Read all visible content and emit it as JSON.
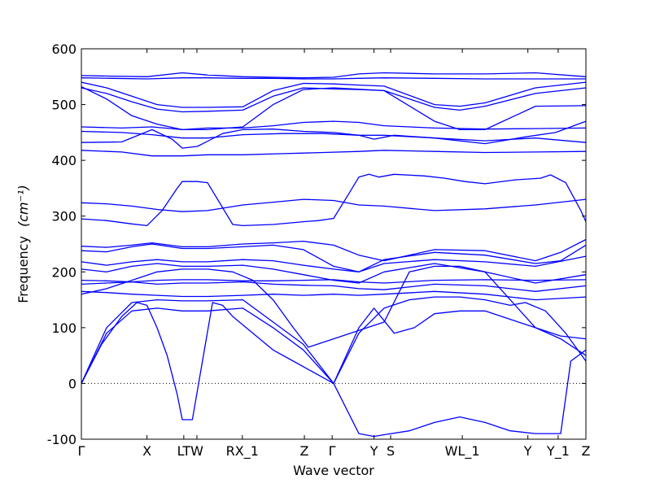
{
  "chart_data": {
    "type": "line",
    "title": "",
    "xlabel": "Wave vector",
    "ylabel": "Frequency",
    "ylabel_unit": "(cm⁻¹)",
    "ylim": [
      -100,
      600
    ],
    "yticks": [
      -100,
      0,
      100,
      200,
      300,
      400,
      500,
      600
    ],
    "xlim": [
      0,
      1
    ],
    "grid": false,
    "legend": "none",
    "line_color": "#0000ff",
    "zero_line_color": "#000000",
    "xticks": [
      {
        "label": "Γ",
        "x": 0.0
      },
      {
        "label": "X",
        "x": 0.13
      },
      {
        "label": "LT",
        "x": 0.203
      },
      {
        "label": "W",
        "x": 0.229
      },
      {
        "label": "RX_1",
        "x": 0.319
      },
      {
        "label": "Z",
        "x": 0.442
      },
      {
        "label": "Γ",
        "x": 0.497
      },
      {
        "label": "Y",
        "x": 0.58
      },
      {
        "label": "S",
        "x": 0.613
      },
      {
        "label": "WL_1",
        "x": 0.755
      },
      {
        "label": "Y",
        "x": 0.885
      },
      {
        "label": "Y_1",
        "x": 0.945
      },
      {
        "label": "Z",
        "x": 1.0
      }
    ],
    "series": [
      {
        "x": [
          0,
          0.06,
          0.13,
          0.2,
          0.25,
          0.32,
          0.38,
          0.44,
          0.5,
          0.55,
          0.6,
          0.7,
          0.8,
          0.9,
          1.0
        ],
        "y": [
          552,
          551,
          550,
          557,
          553,
          550,
          549,
          548,
          549,
          555,
          557,
          555,
          555,
          557,
          550
        ]
      },
      {
        "x": [
          0,
          0.06,
          0.13,
          0.2,
          0.25,
          0.32,
          0.38,
          0.44,
          0.5,
          0.55,
          0.6,
          0.7,
          0.8,
          0.9,
          1.0
        ],
        "y": [
          548,
          547,
          546,
          548,
          548,
          547,
          547,
          546,
          546,
          547,
          548,
          547,
          546,
          546,
          546
        ]
      },
      {
        "x": [
          0,
          0.05,
          0.1,
          0.15,
          0.2,
          0.25,
          0.32,
          0.38,
          0.44,
          0.5,
          0.55,
          0.6,
          0.7,
          0.75,
          0.8,
          0.9,
          1.0
        ],
        "y": [
          540,
          530,
          515,
          500,
          495,
          495,
          496,
          525,
          538,
          537,
          535,
          533,
          500,
          497,
          503,
          530,
          540
        ]
      },
      {
        "x": [
          0,
          0.05,
          0.1,
          0.15,
          0.2,
          0.25,
          0.32,
          0.38,
          0.44,
          0.5,
          0.55,
          0.6,
          0.7,
          0.75,
          0.8,
          0.9,
          1.0
        ],
        "y": [
          530,
          520,
          505,
          492,
          487,
          488,
          490,
          515,
          530,
          528,
          527,
          525,
          495,
          490,
          497,
          520,
          530
        ]
      },
      {
        "x": [
          0,
          0.05,
          0.1,
          0.15,
          0.2,
          0.25,
          0.32,
          0.38,
          0.44,
          0.5,
          0.6,
          0.7,
          0.75,
          0.8,
          0.9,
          1.0
        ],
        "y": [
          532,
          510,
          480,
          465,
          455,
          455,
          460,
          500,
          527,
          530,
          525,
          470,
          455,
          455,
          497,
          498
        ]
      },
      {
        "x": [
          0,
          0.08,
          0.14,
          0.2,
          0.25,
          0.32,
          0.38,
          0.44,
          0.5,
          0.55,
          0.6,
          0.7,
          0.8,
          0.9,
          1.0
        ],
        "y": [
          460,
          458,
          460,
          455,
          458,
          458,
          462,
          468,
          470,
          468,
          462,
          458,
          456,
          457,
          458
        ]
      },
      {
        "x": [
          0,
          0.08,
          0.14,
          0.18,
          0.2,
          0.23,
          0.28,
          0.32,
          0.38,
          0.44,
          0.5,
          0.55,
          0.58,
          0.62,
          0.7,
          0.8,
          0.88,
          0.94,
          1.0
        ],
        "y": [
          432,
          433,
          455,
          438,
          422,
          425,
          448,
          455,
          456,
          452,
          450,
          445,
          438,
          445,
          440,
          430,
          442,
          450,
          470
        ]
      },
      {
        "x": [
          0,
          0.08,
          0.14,
          0.2,
          0.25,
          0.32,
          0.4,
          0.48,
          0.55,
          0.6,
          0.7,
          0.8,
          0.9,
          1.0
        ],
        "y": [
          452,
          450,
          446,
          440,
          440,
          446,
          448,
          448,
          445,
          445,
          440,
          435,
          440,
          432
        ]
      },
      {
        "x": [
          0,
          0.08,
          0.14,
          0.2,
          0.25,
          0.32,
          0.4,
          0.48,
          0.55,
          0.6,
          0.7,
          0.8,
          0.9,
          1.0
        ],
        "y": [
          418,
          415,
          408,
          408,
          410,
          410,
          412,
          414,
          416,
          418,
          416,
          414,
          415,
          416
        ]
      },
      {
        "x": [
          0,
          0.05,
          0.1,
          0.13,
          0.16,
          0.19,
          0.2,
          0.23,
          0.25,
          0.28,
          0.3,
          0.32,
          0.38,
          0.44,
          0.47,
          0.5,
          0.53,
          0.55,
          0.57,
          0.59,
          0.62,
          0.68,
          0.72,
          0.76,
          0.8,
          0.86,
          0.91,
          0.93,
          0.96,
          0.99,
          1.0
        ],
        "y": [
          295,
          292,
          286,
          283,
          310,
          350,
          362,
          362,
          360,
          315,
          285,
          283,
          285,
          290,
          292,
          296,
          340,
          370,
          375,
          370,
          375,
          372,
          368,
          362,
          358,
          365,
          368,
          374,
          360,
          310,
          290
        ]
      },
      {
        "x": [
          0,
          0.05,
          0.1,
          0.15,
          0.2,
          0.25,
          0.32,
          0.38,
          0.44,
          0.5,
          0.55,
          0.6,
          0.7,
          0.8,
          0.9,
          1.0
        ],
        "y": [
          324,
          322,
          318,
          312,
          308,
          310,
          320,
          325,
          330,
          328,
          320,
          318,
          310,
          313,
          320,
          330
        ]
      },
      {
        "x": [
          0,
          0.05,
          0.1,
          0.14,
          0.2,
          0.25,
          0.32,
          0.38,
          0.44,
          0.5,
          0.55,
          0.6,
          0.7,
          0.8,
          0.9,
          0.95,
          1.0
        ],
        "y": [
          246,
          244,
          248,
          252,
          245,
          245,
          250,
          252,
          255,
          248,
          230,
          220,
          240,
          238,
          220,
          235,
          258
        ]
      },
      {
        "x": [
          0,
          0.05,
          0.1,
          0.14,
          0.2,
          0.25,
          0.32,
          0.38,
          0.44,
          0.5,
          0.55,
          0.6,
          0.7,
          0.8,
          0.9,
          0.95,
          1.0
        ],
        "y": [
          238,
          236,
          245,
          250,
          242,
          242,
          245,
          248,
          240,
          210,
          200,
          222,
          235,
          230,
          215,
          220,
          248
        ]
      },
      {
        "x": [
          0,
          0.05,
          0.1,
          0.15,
          0.2,
          0.25,
          0.32,
          0.38,
          0.44,
          0.5,
          0.55,
          0.6,
          0.7,
          0.8,
          0.9,
          1.0
        ],
        "y": [
          218,
          212,
          218,
          222,
          218,
          218,
          222,
          220,
          212,
          205,
          200,
          215,
          222,
          218,
          210,
          228
        ]
      },
      {
        "x": [
          0,
          0.05,
          0.1,
          0.15,
          0.2,
          0.25,
          0.32,
          0.38,
          0.44,
          0.5,
          0.55,
          0.6,
          0.7,
          0.8,
          0.9,
          1.0
        ],
        "y": [
          205,
          200,
          210,
          215,
          210,
          210,
          212,
          205,
          195,
          185,
          180,
          200,
          215,
          200,
          180,
          195
        ]
      },
      {
        "x": [
          0,
          0.05,
          0.1,
          0.15,
          0.2,
          0.25,
          0.32,
          0.38,
          0.44,
          0.5,
          0.55,
          0.6,
          0.7,
          0.8,
          0.9,
          1.0
        ],
        "y": [
          185,
          184,
          182,
          185,
          186,
          186,
          184,
          184,
          185,
          186,
          182,
          180,
          185,
          186,
          185,
          186
        ]
      },
      {
        "x": [
          0,
          0.05,
          0.1,
          0.15,
          0.2,
          0.25,
          0.32,
          0.38,
          0.44,
          0.5,
          0.55,
          0.6,
          0.7,
          0.8,
          0.9,
          1.0
        ],
        "y": [
          178,
          180,
          182,
          178,
          180,
          180,
          182,
          178,
          176,
          175,
          170,
          168,
          178,
          175,
          165,
          175
        ]
      },
      {
        "x": [
          0,
          0.05,
          0.1,
          0.15,
          0.2,
          0.25,
          0.32,
          0.38,
          0.44,
          0.5,
          0.55,
          0.6,
          0.7,
          0.8,
          0.9,
          1.0
        ],
        "y": [
          165,
          163,
          160,
          158,
          156,
          156,
          158,
          160,
          158,
          160,
          158,
          160,
          165,
          160,
          150,
          155
        ]
      },
      {
        "x": [
          0,
          0.05,
          0.1,
          0.15,
          0.2,
          0.25,
          0.3,
          0.34,
          0.38,
          0.42,
          0.45,
          0.5,
          0.55,
          0.6,
          0.65,
          0.7,
          0.75,
          0.8,
          0.85,
          0.9,
          0.95,
          1.0
        ],
        "y": [
          160,
          170,
          185,
          200,
          205,
          205,
          200,
          185,
          150,
          100,
          65,
          80,
          95,
          110,
          200,
          210,
          210,
          200,
          150,
          100,
          85,
          80
        ]
      },
      {
        "x": [
          0,
          0.04,
          0.08,
          0.11,
          0.13,
          0.15,
          0.17,
          0.19,
          0.2,
          0.22,
          0.26,
          0.28,
          0.3,
          0.34,
          0.38,
          0.42,
          0.45,
          0.5
        ],
        "y": [
          0,
          70,
          120,
          145,
          140,
          100,
          50,
          -20,
          -65,
          -65,
          145,
          140,
          120,
          90,
          60,
          40,
          25,
          0
        ]
      },
      {
        "x": [
          0,
          0.05,
          0.1,
          0.15,
          0.2,
          0.25,
          0.32,
          0.38,
          0.44,
          0.5
        ],
        "y": [
          0,
          90,
          130,
          135,
          130,
          130,
          135,
          100,
          60,
          0
        ]
      },
      {
        "x": [
          0,
          0.05,
          0.1,
          0.15,
          0.2,
          0.25,
          0.32,
          0.38,
          0.44,
          0.5
        ],
        "y": [
          0,
          100,
          145,
          150,
          148,
          148,
          150,
          110,
          70,
          0
        ]
      },
      {
        "x": [
          0.5,
          0.55,
          0.58,
          0.6,
          0.65,
          0.7,
          0.75,
          0.8,
          0.85,
          0.9,
          0.95,
          0.97,
          1.0
        ],
        "y": [
          0,
          -90,
          -95,
          -92,
          -85,
          -70,
          -60,
          -70,
          -85,
          -90,
          -90,
          40,
          60
        ]
      },
      {
        "x": [
          0.5,
          0.55,
          0.58,
          0.62,
          0.66,
          0.7,
          0.75,
          0.8,
          0.85,
          0.9,
          0.95,
          1.0
        ],
        "y": [
          0,
          100,
          135,
          90,
          100,
          125,
          130,
          130,
          115,
          100,
          80,
          50
        ]
      },
      {
        "x": [
          0.5,
          0.55,
          0.6,
          0.65,
          0.7,
          0.75,
          0.8,
          0.85,
          0.88,
          0.92,
          0.96,
          1.0
        ],
        "y": [
          0,
          90,
          135,
          150,
          155,
          155,
          150,
          140,
          145,
          130,
          90,
          40
        ]
      }
    ]
  }
}
